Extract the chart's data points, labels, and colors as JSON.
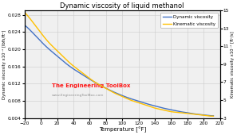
{
  "title": "Dynamic viscosity of liquid methanol",
  "xlabel": "Temperature [°F]",
  "ylabel_left": "Dynamic viscosity x10⁻⁶ [lbfs/ft²]",
  "ylabel_right": "Kinematic viscosity x10⁻⁶ [ft²/s]",
  "dynamic_color": "#4472c4",
  "kinematic_color": "#ffc000",
  "legend_entries": [
    "Dynamic viscosity",
    "Kinematic viscosity"
  ],
  "xlim": [
    -20,
    220
  ],
  "ylim_left": [
    0.004,
    0.029
  ],
  "ylim_right": [
    3,
    15
  ],
  "yticks_left": [
    0.004,
    0.008,
    0.012,
    0.016,
    0.02,
    0.024,
    0.028
  ],
  "yticks_right": [
    3,
    5,
    7,
    9,
    11,
    13,
    15
  ],
  "xticks": [
    -20,
    0,
    20,
    40,
    60,
    80,
    100,
    120,
    140,
    160,
    180,
    200,
    220
  ],
  "watermark_text": "The Engineering ToolBox",
  "watermark_url": "www.EngineeringToolBox.com",
  "background_color": "#f0f0f0",
  "grid_color": "#cccccc",
  "dyn_T": [
    -20,
    -10,
    0,
    10,
    20,
    30,
    40,
    50,
    60,
    70,
    80,
    90,
    100,
    110,
    120,
    130,
    140,
    150,
    160,
    170,
    180,
    190,
    200,
    210,
    212
  ],
  "dyn_V": [
    0.0256,
    0.0238,
    0.0218,
    0.02,
    0.0184,
    0.0168,
    0.0154,
    0.0142,
    0.013,
    0.0119,
    0.0109,
    0.01,
    0.0092,
    0.0085,
    0.0079,
    0.0073,
    0.0068,
    0.0063,
    0.0059,
    0.0055,
    0.0052,
    0.0049,
    0.0047,
    0.0045,
    0.0045
  ],
  "kin_T": [
    -20,
    -10,
    0,
    10,
    20,
    30,
    40,
    50,
    60,
    70,
    80,
    90,
    100,
    110,
    120,
    130,
    140,
    150,
    160,
    170,
    180,
    190,
    200,
    210,
    212
  ],
  "kin_V": [
    14.8,
    13.7,
    12.5,
    11.4,
    10.5,
    9.6,
    8.8,
    8.1,
    7.4,
    6.8,
    6.3,
    5.8,
    5.4,
    5.0,
    4.7,
    4.4,
    4.1,
    3.9,
    3.7,
    3.6,
    3.5,
    3.4,
    3.3,
    3.2,
    3.2
  ]
}
